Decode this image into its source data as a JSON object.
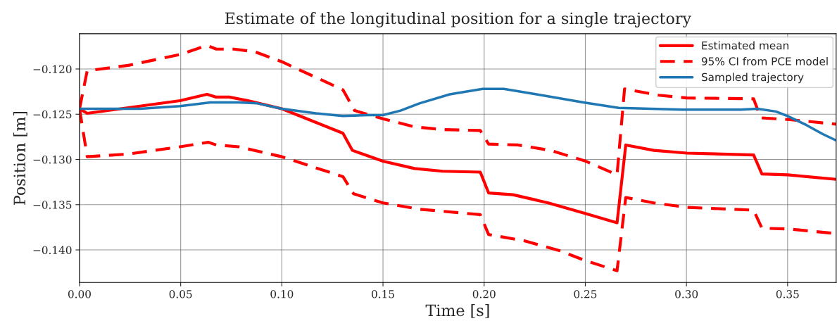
{
  "chart_data": {
    "type": "line",
    "title": "Estimate of the longitudinal position for a single trajectory",
    "xlabel": "Time [s]",
    "ylabel": "Position [m]",
    "xlim": [
      0,
      0.374
    ],
    "ylim": [
      -0.1436,
      -0.1161
    ],
    "xticks": [
      {
        "value": 0,
        "label": "0.00"
      },
      {
        "value": 0.05,
        "label": "0.05"
      },
      {
        "value": 0.1,
        "label": "0.10"
      },
      {
        "value": 0.15,
        "label": "0.15"
      },
      {
        "value": 0.2,
        "label": "0.20"
      },
      {
        "value": 0.25,
        "label": "0.25"
      },
      {
        "value": 0.3,
        "label": "0.30"
      },
      {
        "value": 0.35,
        "label": "0.35"
      }
    ],
    "yticks": [
      {
        "value": -0.14,
        "label": "−0.140"
      },
      {
        "value": -0.135,
        "label": "−0.135"
      },
      {
        "value": -0.13,
        "label": "−0.130"
      },
      {
        "value": -0.125,
        "label": "−0.125"
      },
      {
        "value": -0.12,
        "label": "−0.120"
      }
    ],
    "grid": true,
    "legend": "top right",
    "series": [
      {
        "name": "Estimated mean",
        "color": "#ff0000",
        "line_style": "solid",
        "x": [
          0,
          0.0038,
          0.0497,
          0.063,
          0.0673,
          0.074,
          0.0833,
          0.1,
          0.1302,
          0.1349,
          0.15,
          0.1656,
          0.1795,
          0.1981,
          0.2022,
          0.2143,
          0.2317,
          0.2503,
          0.2657,
          0.27,
          0.2839,
          0.3002,
          0.3332,
          0.3373,
          0.35,
          0.374
        ],
        "values": [
          -0.1244,
          -0.1249,
          -0.1235,
          -0.1228,
          -0.1231,
          -0.1231,
          -0.1235,
          -0.1244,
          -0.1271,
          -0.129,
          -0.1302,
          -0.131,
          -0.1313,
          -0.1314,
          -0.1337,
          -0.1339,
          -0.1348,
          -0.136,
          -0.137,
          -0.1284,
          -0.129,
          -0.1293,
          -0.1295,
          -0.1316,
          -0.1317,
          -0.1322
        ]
      },
      {
        "name": "95% CI from PCE model",
        "color": "#ff0000",
        "line_style": "dashed",
        "x": [
          0,
          0.0038,
          0.0241,
          0.0497,
          0.063,
          0.0676,
          0.0763,
          0.0868,
          0.1,
          0.1302,
          0.136,
          0.15,
          0.1656,
          0.1795,
          0.1981,
          0.2022,
          0.2167,
          0.2329,
          0.2503,
          0.2657,
          0.2694,
          0.2862,
          0.3002,
          0.3332,
          0.3367,
          0.3512,
          0.374,
          null,
          0,
          0.0038,
          0.0241,
          0.0497,
          0.0636,
          0.0676,
          0.0786,
          0.1,
          0.1302,
          0.1355,
          0.15,
          0.168,
          0.1981,
          0.2022,
          0.2201,
          0.2375,
          0.2503,
          0.2657,
          0.27,
          0.2839,
          0.3002,
          0.3332,
          0.3373,
          0.3512,
          0.374
        ],
        "values": [
          -0.1244,
          -0.1202,
          -0.1196,
          -0.1184,
          -0.1174,
          -0.1178,
          -0.1178,
          -0.1181,
          -0.1192,
          -0.1223,
          -0.1246,
          -0.1255,
          -0.1264,
          -0.1267,
          -0.1268,
          -0.1283,
          -0.1284,
          -0.129,
          -0.1302,
          -0.1317,
          -0.1222,
          -0.1229,
          -0.1232,
          -0.1233,
          -0.1254,
          -0.1256,
          -0.1261,
          null,
          -0.1244,
          -0.1297,
          -0.1294,
          -0.1286,
          -0.1281,
          -0.1284,
          -0.1286,
          -0.1297,
          -0.1319,
          -0.1338,
          -0.1348,
          -0.1355,
          -0.1361,
          -0.1383,
          -0.139,
          -0.1401,
          -0.1412,
          -0.1423,
          -0.1342,
          -0.1348,
          -0.1353,
          -0.1356,
          -0.1376,
          -0.1377,
          -0.1382
        ]
      },
      {
        "name": "Sampled trajectory",
        "color": "#1f77b4",
        "line_style": "solid",
        "x": [
          0,
          0.0299,
          0.0497,
          0.0647,
          0.0786,
          0.0879,
          0.1,
          0.1169,
          0.1302,
          0.1424,
          0.15,
          0.1587,
          0.168,
          0.183,
          0.1993,
          0.2097,
          0.2259,
          0.2491,
          0.2665,
          0.2978,
          0.3268,
          0.335,
          0.3442,
          0.35,
          0.3593,
          0.3674,
          0.374
        ],
        "values": [
          -0.1244,
          -0.1244,
          -0.1241,
          -0.1237,
          -0.1237,
          -0.1238,
          -0.1244,
          -0.1249,
          -0.1252,
          -0.1251,
          -0.1251,
          -0.1246,
          -0.1238,
          -0.1228,
          -0.1222,
          -0.1222,
          -0.1228,
          -0.1237,
          -0.1243,
          -0.1245,
          -0.1245,
          -0.1244,
          -0.1247,
          -0.1252,
          -0.1262,
          -0.1272,
          -0.1279
        ]
      }
    ]
  }
}
